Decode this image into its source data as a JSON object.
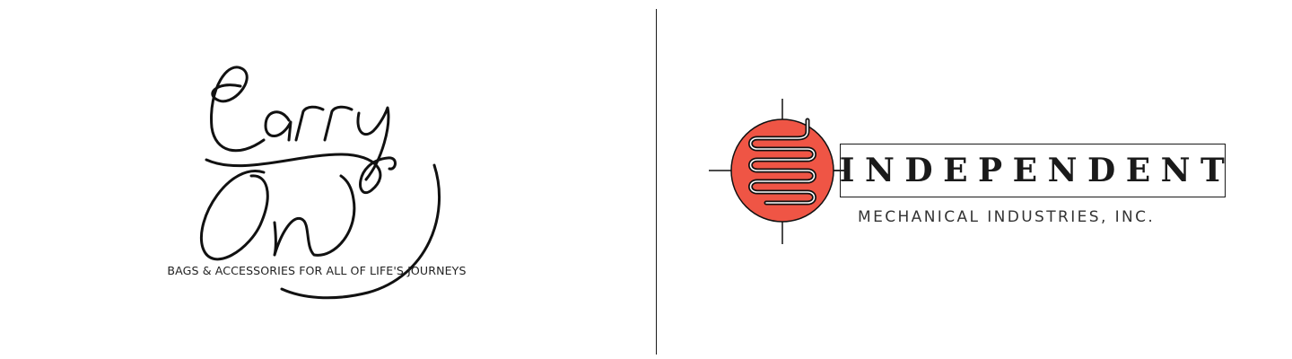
{
  "carry_on": {
    "wordmark": "Carry On",
    "tagline": "BAGS & ACCESSORIES FOR ALL OF LIFE'S JOURNEYS"
  },
  "independent": {
    "name": "INDEPENDENT",
    "subtitle": "MECHANICAL INDUSTRIES, INC.",
    "accent_color": "#ef5545"
  }
}
